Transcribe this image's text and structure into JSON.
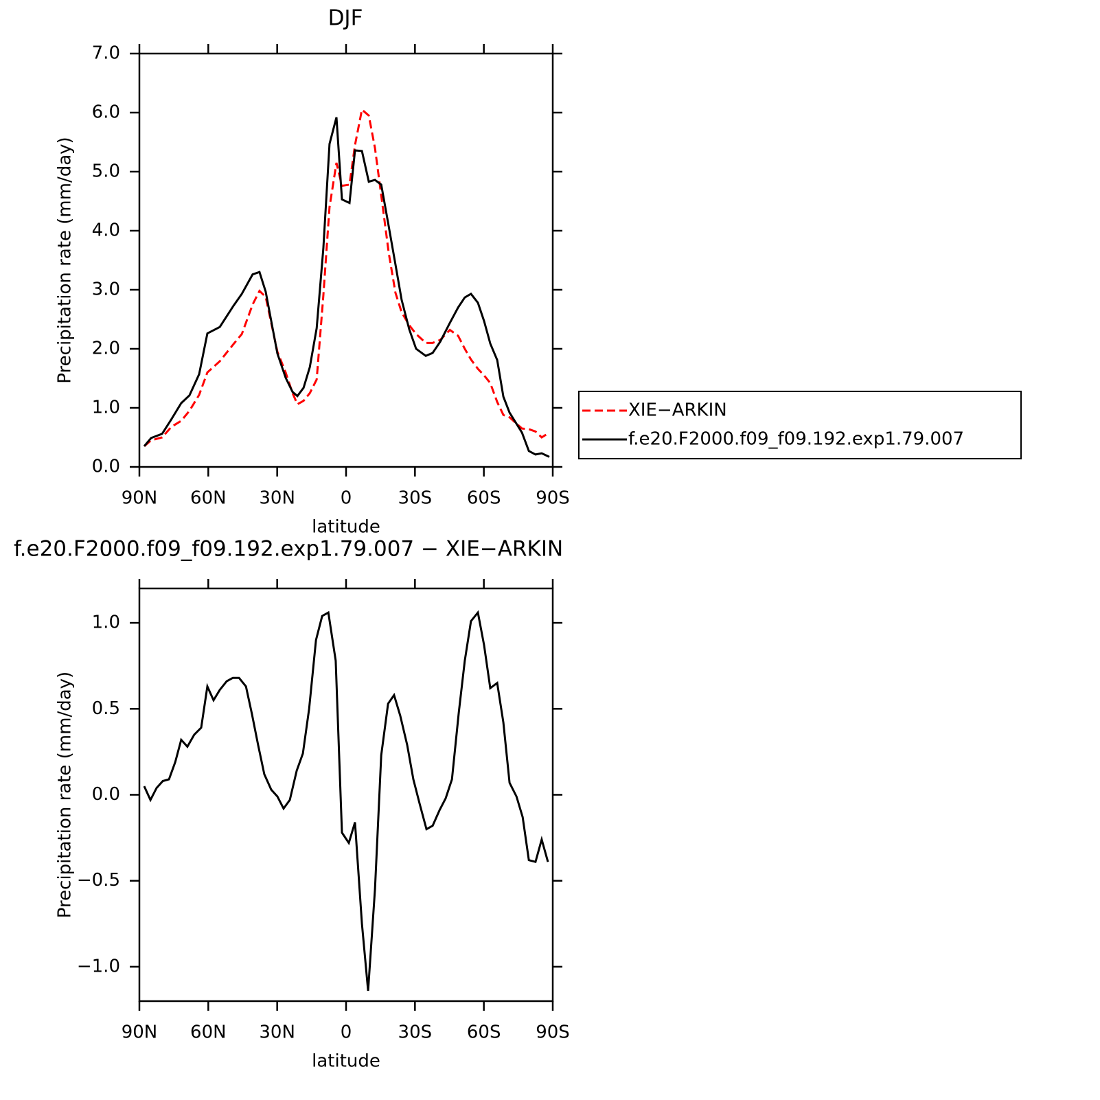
{
  "chart_data": [
    {
      "type": "line",
      "title": "DJF",
      "xlabel": "latitude",
      "ylabel": "Precipitation rate (mm/day)",
      "xlim": [
        90,
        -90
      ],
      "ylim": [
        0,
        7
      ],
      "xticks": [
        {
          "value": 90,
          "label": "90N"
        },
        {
          "value": 60,
          "label": "60N"
        },
        {
          "value": 30,
          "label": "30N"
        },
        0,
        {
          "value": -30,
          "label": "30S"
        },
        {
          "value": -60,
          "label": "60S"
        },
        {
          "value": -90,
          "label": "90S"
        }
      ],
      "yticks": [
        {
          "value": 0,
          "label": "0.0"
        },
        {
          "value": 1,
          "label": "1.0"
        },
        {
          "value": 2,
          "label": "2.0"
        },
        {
          "value": 3,
          "label": "3.0"
        },
        {
          "value": 4,
          "label": "4.0"
        },
        {
          "value": 5,
          "label": "5.0"
        },
        {
          "value": 6,
          "label": "6.0"
        },
        {
          "value": 7,
          "label": "7.0"
        }
      ],
      "legend": "right",
      "x": [
        87.9,
        84.9,
        80.1,
        76,
        71.8,
        68.2,
        64,
        60.4,
        55,
        49,
        45.4,
        40.7,
        37.7,
        35,
        29.9,
        26.3,
        23.3,
        21.2,
        18.5,
        15.8,
        12.8,
        9.9,
        7.2,
        4.2,
        1.8,
        -1.5,
        -3.9,
        -6.9,
        -9.9,
        -12.6,
        -15.3,
        -18.6,
        -21.5,
        -24.2,
        -27.5,
        -30.5,
        -34.7,
        -37.7,
        -41,
        -45.2,
        -48.8,
        -51.7,
        -54.4,
        -57.4,
        -60.1,
        -62.8,
        -65.8,
        -68.5,
        -71.2,
        -76.6,
        -79.6,
        -82.5,
        -85.2,
        -88.5
      ],
      "series": [
        {
          "name": "XIE−ARKIN",
          "color": "#ff0000",
          "style": "dashed",
          "values": [
            0.35,
            0.45,
            0.5,
            0.68,
            0.78,
            0.95,
            1.22,
            1.6,
            1.79,
            2.08,
            2.25,
            2.75,
            2.98,
            2.88,
            1.95,
            1.6,
            1.25,
            1.06,
            1.12,
            1.25,
            1.48,
            2.9,
            4.4,
            5.15,
            4.76,
            4.78,
            5.45,
            6.05,
            5.95,
            5.4,
            4.6,
            3.62,
            2.95,
            2.62,
            2.4,
            2.25,
            2.1,
            2.1,
            2.15,
            2.32,
            2.22,
            2.0,
            1.82,
            1.66,
            1.55,
            1.42,
            1.1,
            0.88,
            0.84,
            0.65,
            0.64,
            0.6,
            0.5,
            0.58
          ]
        },
        {
          "name": "f.e20.F2000.f09_f09.192.exp1.79.007",
          "color": "#000000",
          "style": "solid",
          "values": [
            0.35,
            0.49,
            0.56,
            0.81,
            1.08,
            1.21,
            1.57,
            2.26,
            2.37,
            2.73,
            2.93,
            3.26,
            3.3,
            2.97,
            1.92,
            1.51,
            1.27,
            1.2,
            1.34,
            1.69,
            2.35,
            3.7,
            5.47,
            5.92,
            4.53,
            4.47,
            5.36,
            5.35,
            4.83,
            4.86,
            4.78,
            4.07,
            3.43,
            2.83,
            2.33,
            2.0,
            1.88,
            1.93,
            2.12,
            2.44,
            2.7,
            2.87,
            2.93,
            2.78,
            2.47,
            2.09,
            1.81,
            1.19,
            0.92,
            0.58,
            0.27,
            0.21,
            0.23,
            0.17
          ]
        }
      ]
    },
    {
      "type": "line",
      "title": "f.e20.F2000.f09_f09.192.exp1.79.007 − XIE−ARKIN",
      "xlabel": "latitude",
      "ylabel": "Precipitation rate (mm/day)",
      "xlim": [
        90,
        -90
      ],
      "ylim": [
        -1.2,
        1.2
      ],
      "xticks": [
        {
          "value": 90,
          "label": "90N"
        },
        {
          "value": 60,
          "label": "60N"
        },
        {
          "value": 30,
          "label": "30N"
        },
        0,
        {
          "value": -30,
          "label": "30S"
        },
        {
          "value": -60,
          "label": "60S"
        },
        {
          "value": -90,
          "label": "90S"
        }
      ],
      "yticks": [
        {
          "value": -1,
          "label": "−1.0"
        },
        {
          "value": -0.5,
          "label": "−0.5"
        },
        {
          "value": 0,
          "label": "0.0"
        },
        {
          "value": 0.5,
          "label": "0.5"
        },
        {
          "value": 1,
          "label": "1.0"
        }
      ],
      "x": [
        87.9,
        85.2,
        82.5,
        79.8,
        77.1,
        74.4,
        71.8,
        69.1,
        66.1,
        63.1,
        60.4,
        57.7,
        55,
        52,
        49.3,
        46.6,
        43.6,
        41,
        38.3,
        35.6,
        32.6,
        29.9,
        27.2,
        24.5,
        21.5,
        18.8,
        16.1,
        13.1,
        10.4,
        7.7,
        4.5,
        1.8,
        -1.2,
        -3.9,
        -6.9,
        -9.6,
        -12.6,
        -15.3,
        -18.3,
        -20.9,
        -23.6,
        -26.6,
        -29.3,
        -32,
        -35,
        -37.7,
        -40.7,
        -43.4,
        -46.1,
        -49.1,
        -51.7,
        -54.4,
        -57.4,
        -60.1,
        -62.8,
        -65.8,
        -68.5,
        -71.2,
        -74.2,
        -76.9,
        -79.6,
        -82.5,
        -85.2,
        -87.9
      ],
      "series": [
        {
          "color": "#000000",
          "style": "solid",
          "values": [
            0.05,
            -0.03,
            0.04,
            0.08,
            0.09,
            0.19,
            0.32,
            0.28,
            0.35,
            0.39,
            0.63,
            0.55,
            0.61,
            0.66,
            0.68,
            0.68,
            0.63,
            0.47,
            0.29,
            0.12,
            0.03,
            -0.01,
            -0.08,
            -0.03,
            0.14,
            0.24,
            0.5,
            0.9,
            1.04,
            1.06,
            0.78,
            -0.22,
            -0.28,
            -0.16,
            -0.75,
            -1.14,
            -0.55,
            0.23,
            0.53,
            0.58,
            0.46,
            0.29,
            0.09,
            -0.05,
            -0.2,
            -0.18,
            -0.09,
            -0.02,
            0.09,
            0.48,
            0.78,
            1.01,
            1.06,
            0.87,
            0.62,
            0.65,
            0.42,
            0.07,
            -0.01,
            -0.13,
            -0.38,
            -0.39,
            -0.26,
            -0.39
          ]
        }
      ]
    }
  ]
}
